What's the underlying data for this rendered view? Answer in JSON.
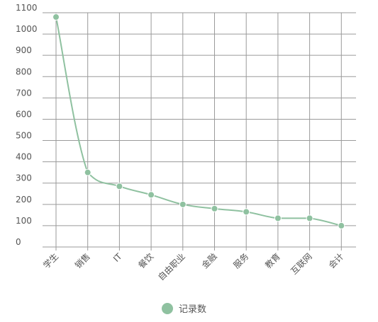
{
  "chart_data": {
    "type": "line",
    "categories": [
      "学生",
      "销售",
      "IT",
      "餐饮",
      "自由职业",
      "金融",
      "服务",
      "教育",
      "互联网",
      "会计"
    ],
    "series": [
      {
        "name": "记录数",
        "values": [
          1080,
          350,
          285,
          245,
          200,
          180,
          165,
          135,
          135,
          100
        ]
      }
    ],
    "ylim": [
      0,
      1100
    ],
    "yticks": [
      0,
      100,
      200,
      300,
      400,
      500,
      600,
      700,
      800,
      900,
      1000,
      1100
    ],
    "title": "",
    "xlabel": "",
    "ylabel": "",
    "grid": true,
    "smooth": true,
    "legend_position": "bottom",
    "color": "#8fc1a0"
  }
}
